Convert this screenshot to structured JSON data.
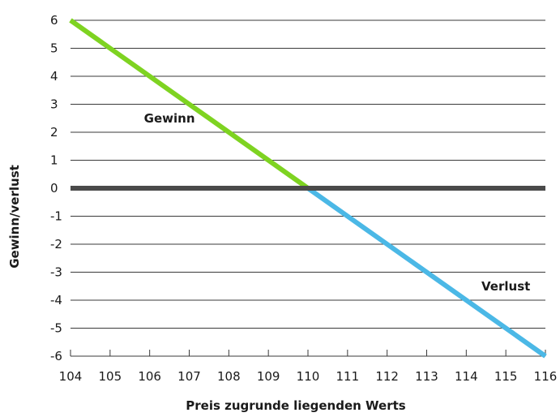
{
  "chart_data": {
    "type": "line",
    "x": [
      104,
      105,
      106,
      107,
      108,
      109,
      110,
      111,
      112,
      113,
      114,
      115,
      116
    ],
    "series": [
      {
        "segment": "profit",
        "color": "#7ed321",
        "x": [
          104,
          110
        ],
        "y": [
          6,
          0
        ]
      },
      {
        "segment": "loss",
        "color": "#4bb8e6",
        "x": [
          110,
          116
        ],
        "y": [
          0,
          -6
        ]
      }
    ],
    "xlabel": "Preis zugrunde liegenden Werts",
    "ylabel": "Gewinn/verlust",
    "xlim": [
      104,
      116
    ],
    "ylim": [
      -6,
      6
    ],
    "xticks": [
      104,
      105,
      106,
      107,
      108,
      109,
      110,
      111,
      112,
      113,
      114,
      115,
      116
    ],
    "yticks": [
      -6,
      -5,
      -4,
      -3,
      -2,
      -1,
      0,
      1,
      2,
      3,
      4,
      5,
      6
    ],
    "grid": "horizontal",
    "zero_line_color": "#4a4a4a",
    "annotations": [
      {
        "text": "Gewinn",
        "x": 106.5,
        "y": 2.5
      },
      {
        "text": "Verlust",
        "x": 115.0,
        "y": -3.5
      }
    ]
  }
}
